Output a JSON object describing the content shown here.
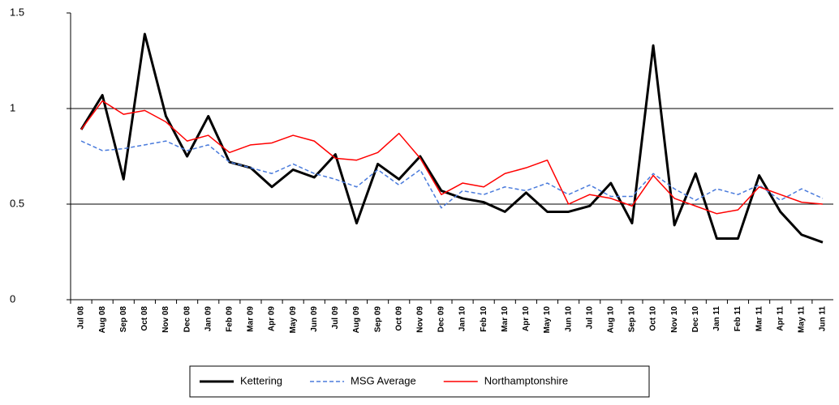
{
  "chart_data": {
    "type": "line",
    "categories": [
      "Jul 08",
      "Aug 08",
      "Sep 08",
      "Oct 08",
      "Nov 08",
      "Dec 08",
      "Jan 09",
      "Feb 09",
      "Mar 09",
      "Apr 09",
      "May 09",
      "Jun 09",
      "Jul 09",
      "Aug 09",
      "Sep 09",
      "Oct 09",
      "Nov 09",
      "Dec 09",
      "Jan 10",
      "Feb 10",
      "Mar 10",
      "Apr 10",
      "May 10",
      "Jun 10",
      "Jul 10",
      "Aug 10",
      "Sep 10",
      "Oct 10",
      "Nov 10",
      "Dec 10",
      "Jan 11",
      "Feb 11",
      "Mar 11",
      "Apr 11",
      "May 11",
      "Jun 11"
    ],
    "series": [
      {
        "name": "Kettering",
        "color": "#000000",
        "width": 3,
        "dash": false,
        "values": [
          0.89,
          1.07,
          0.63,
          1.39,
          0.96,
          0.75,
          0.96,
          0.72,
          0.69,
          0.59,
          0.68,
          0.64,
          0.76,
          0.4,
          0.71,
          0.63,
          0.75,
          0.57,
          0.53,
          0.51,
          0.46,
          0.56,
          0.46,
          0.46,
          0.49,
          0.61,
          0.4,
          1.33,
          0.39,
          0.66,
          0.32,
          0.32,
          0.65,
          0.46,
          0.34,
          0.3
        ]
      },
      {
        "name": "MSG Average",
        "color": "#4a7bdc",
        "width": 1.5,
        "dash": true,
        "values": [
          0.83,
          0.78,
          0.79,
          0.81,
          0.83,
          0.78,
          0.81,
          0.72,
          0.69,
          0.66,
          0.71,
          0.66,
          0.63,
          0.59,
          0.68,
          0.6,
          0.68,
          0.48,
          0.57,
          0.55,
          0.59,
          0.57,
          0.61,
          0.55,
          0.6,
          0.54,
          0.54,
          0.66,
          0.58,
          0.52,
          0.58,
          0.55,
          0.6,
          0.52,
          0.58,
          0.53
        ]
      },
      {
        "name": "Northamptonshire",
        "color": "#ff0000",
        "width": 1.5,
        "dash": false,
        "values": [
          0.89,
          1.04,
          0.97,
          0.99,
          0.93,
          0.83,
          0.86,
          0.77,
          0.81,
          0.82,
          0.86,
          0.83,
          0.74,
          0.73,
          0.77,
          0.87,
          0.74,
          0.55,
          0.61,
          0.59,
          0.66,
          0.69,
          0.73,
          0.5,
          0.55,
          0.53,
          0.49,
          0.65,
          0.53,
          0.49,
          0.45,
          0.47,
          0.59,
          0.55,
          0.51,
          0.5
        ]
      }
    ],
    "ylim": [
      0,
      1.5
    ],
    "yticks": [
      0,
      0.5,
      1,
      1.5
    ],
    "grid": true,
    "legend": "bottom"
  }
}
